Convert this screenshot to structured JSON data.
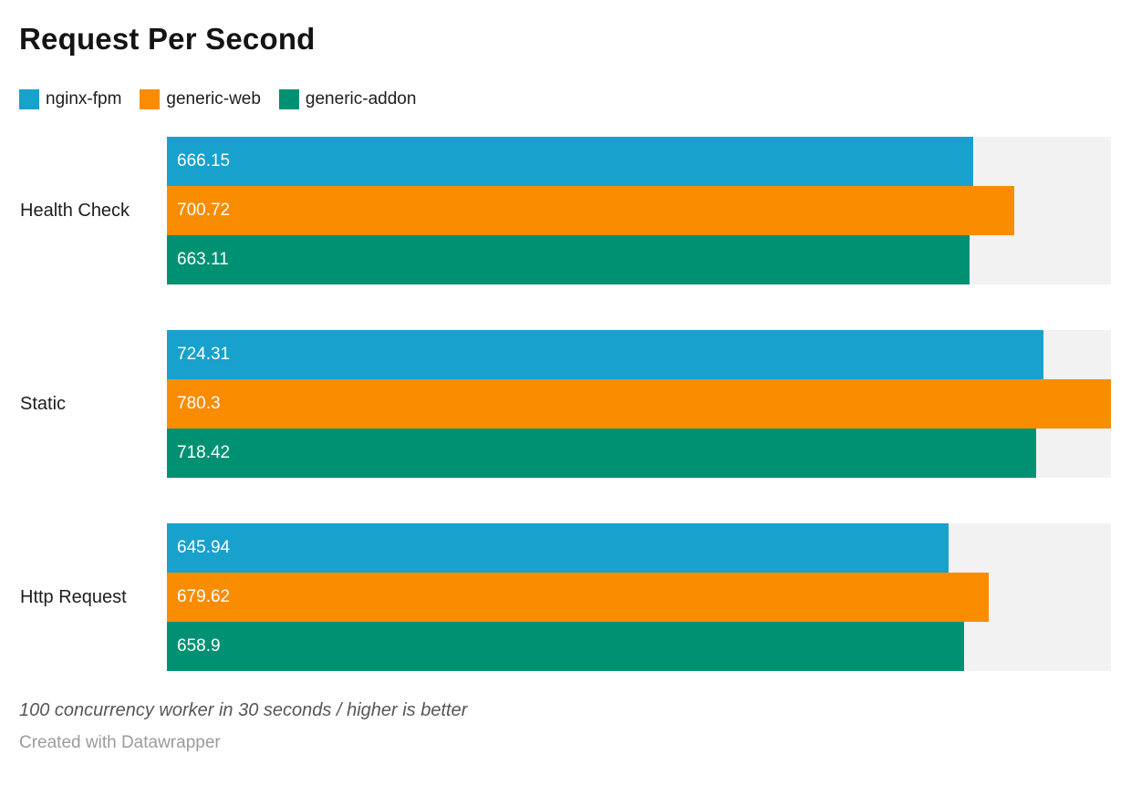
{
  "header": {
    "title": "Request Per Second"
  },
  "legend": {
    "items": [
      {
        "label": "nginx-fpm",
        "color": "#18A1CD"
      },
      {
        "label": "generic-web",
        "color": "#FA8C00"
      },
      {
        "label": "generic-addon",
        "color": "#009173"
      }
    ]
  },
  "chart_data": {
    "type": "bar",
    "orientation": "horizontal",
    "title": "Request Per Second",
    "categories": [
      "Health Check",
      "Static",
      "Http Request"
    ],
    "series": [
      {
        "name": "nginx-fpm",
        "color": "#18A1CD",
        "values": [
          666.15,
          724.31,
          645.94
        ]
      },
      {
        "name": "generic-web",
        "color": "#FA8C00",
        "values": [
          700.72,
          780.3,
          679.62
        ]
      },
      {
        "name": "generic-addon",
        "color": "#009173",
        "values": [
          663.11,
          718.42,
          658.9
        ]
      }
    ],
    "xlim": [
      0,
      780.3
    ],
    "value_labels": "inside-left",
    "value_label_color": "#ffffff",
    "track_color": "#F2F2F2",
    "grid": false,
    "legend_position": "top",
    "axis_ticks": "none"
  },
  "footer": {
    "note": "100 concurrency worker in 30 seconds / higher is better",
    "credit": "Created with Datawrapper"
  }
}
